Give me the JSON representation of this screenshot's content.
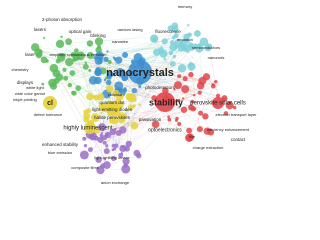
{
  "nodes": [
    {
      "label": "memory"
    },
    {
      "label": "2-photon absorption"
    },
    {
      "label": "lasers"
    },
    {
      "label": "optical gain"
    },
    {
      "label": "blinking"
    },
    {
      "label": "random lasing"
    },
    {
      "label": "fluorescence"
    },
    {
      "label": "nanowire"
    },
    {
      "label": "emission"
    },
    {
      "label": "semiconductors"
    },
    {
      "label": "nanorods"
    },
    {
      "label": "laser"
    },
    {
      "label": "amplified spontaneous emission"
    },
    {
      "label": "chemistry"
    },
    {
      "label": "nanocrystals"
    },
    {
      "label": "displays"
    },
    {
      "label": "white light"
    },
    {
      "label": "wide color gamut"
    },
    {
      "label": "inkjet printing"
    },
    {
      "label": "photodetectors"
    },
    {
      "label": "stability"
    },
    {
      "label": "perovskite solar cells"
    },
    {
      "label": "electron transport layer"
    },
    {
      "label": "cl"
    },
    {
      "label": "colloidal"
    },
    {
      "label": "quantum dot"
    },
    {
      "label": "light-emitting diodes"
    },
    {
      "label": "halide perovskites"
    },
    {
      "label": "passivation"
    },
    {
      "label": "highly luminescent"
    },
    {
      "label": "defect tolerance"
    },
    {
      "label": "optoelectronics"
    },
    {
      "label": "efficiency enhancement"
    },
    {
      "label": "contact"
    },
    {
      "label": "film"
    },
    {
      "label": "enhanced stability"
    },
    {
      "label": "blue emission"
    },
    {
      "label": "charge extraction"
    },
    {
      "label": "light-emitting device"
    },
    {
      "label": "composite films"
    },
    {
      "label": "anion exchange"
    }
  ]
}
